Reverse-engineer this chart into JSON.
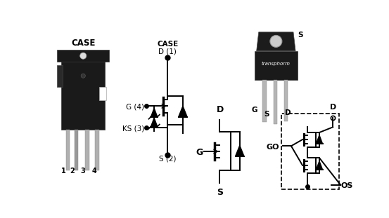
{
  "bg_color": "#ffffff",
  "fig_width": 5.53,
  "fig_height": 3.11,
  "dpi": 100,
  "pkg_case_label": "CASE",
  "pkg_pin_labels": [
    "1",
    "2",
    "3",
    "4"
  ],
  "sch1_labels": {
    "case": "CASE",
    "d": "D (1)",
    "g": "G (4)",
    "ks": "KS (3)",
    "s": "S (2)"
  },
  "to220_labels": {
    "top_s": "S",
    "g": "G",
    "s": "S",
    "d": "D",
    "brand": "transphorm"
  },
  "mosfet_labels": {
    "d": "D",
    "g": "G",
    "s": "S"
  },
  "sch2_labels": {
    "d": "D",
    "g": "GO",
    "s": "OS"
  }
}
